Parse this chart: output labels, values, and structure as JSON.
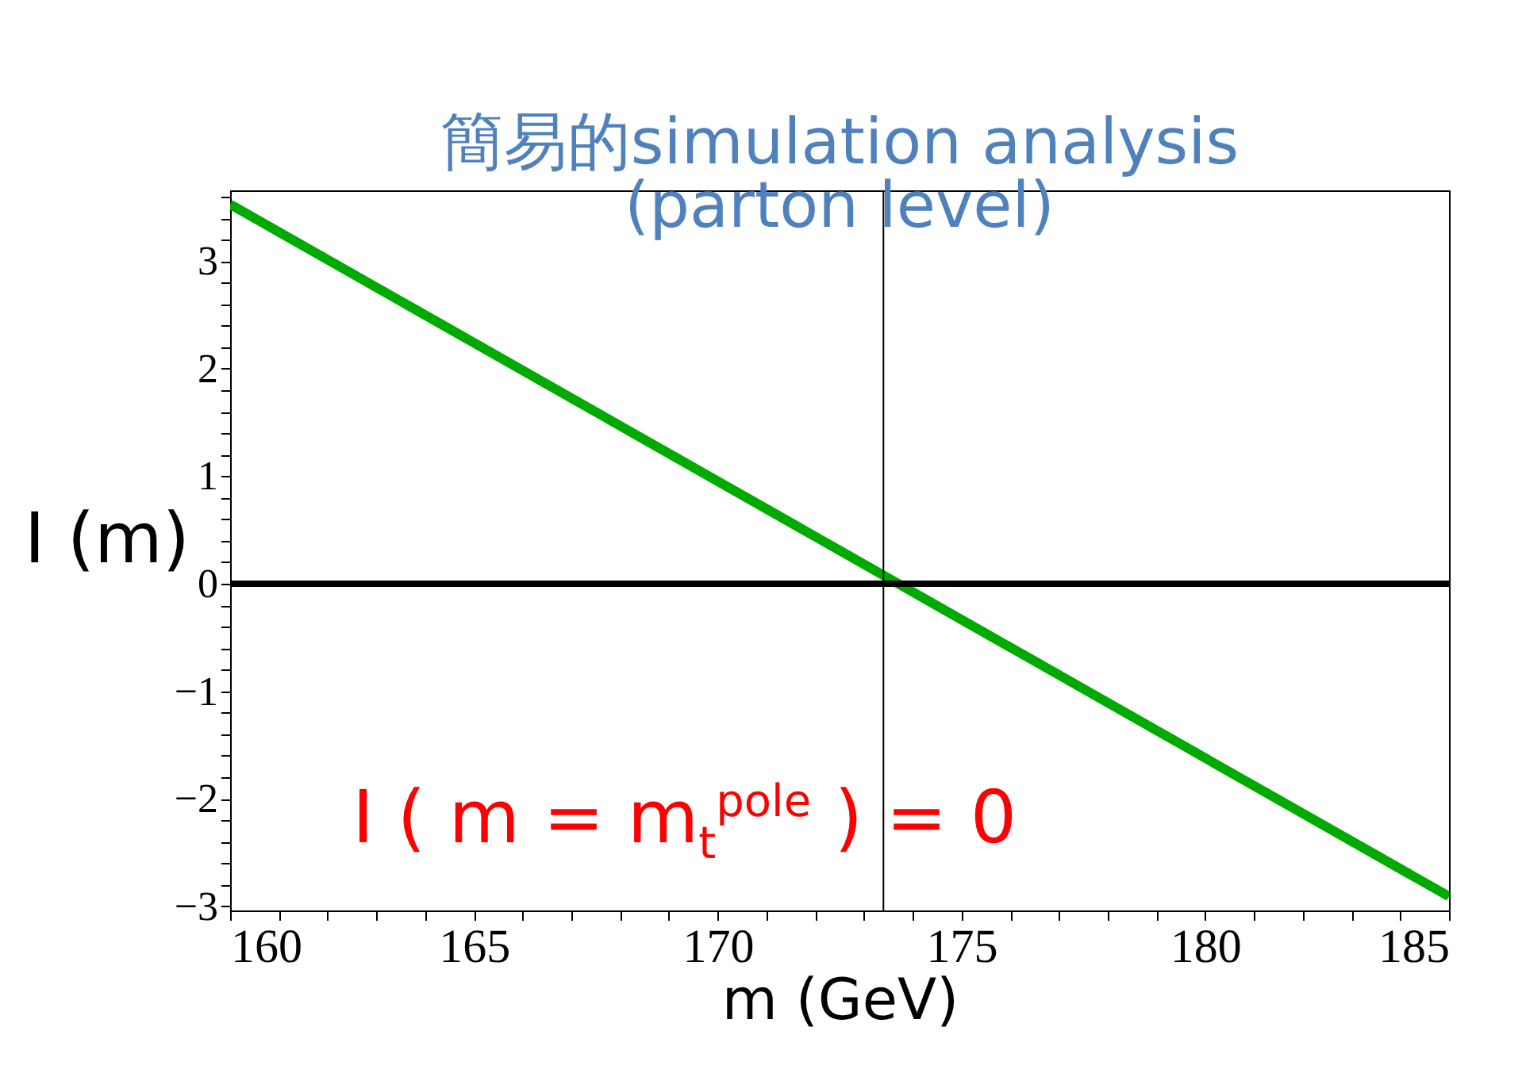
{
  "chart_data": {
    "type": "line",
    "title": "簡易的simulation analysis",
    "subtitle": "(parton level)",
    "xlabel": "m (GeV)",
    "ylabel": "I (m)",
    "x": [
      160,
      185
    ],
    "series": [
      {
        "color": "#00aa00",
        "values": [
          3.53,
          -2.91
        ]
      }
    ],
    "xlim": [
      160,
      185
    ],
    "ylim": [
      -3.04,
      3.66
    ],
    "xticks": [
      160,
      {
        "value": 161,
        "label": null
      },
      {
        "value": 162,
        "label": null
      },
      {
        "value": 163,
        "label": null
      },
      {
        "value": 164,
        "label": null
      },
      165,
      {
        "value": 166,
        "label": null
      },
      {
        "value": 167,
        "label": null
      },
      {
        "value": 168,
        "label": null
      },
      {
        "value": 169,
        "label": null
      },
      170,
      {
        "value": 171,
        "label": null
      },
      {
        "value": 172,
        "label": null
      },
      {
        "value": 173,
        "label": null
      },
      {
        "value": 174,
        "label": null
      },
      175,
      {
        "value": 176,
        "label": null
      },
      {
        "value": 177,
        "label": null
      },
      {
        "value": 178,
        "label": null
      },
      {
        "value": 179,
        "label": null
      },
      180,
      {
        "value": 181,
        "label": null
      },
      {
        "value": 182,
        "label": null
      },
      {
        "value": 183,
        "label": null
      },
      {
        "value": 184,
        "label": null
      },
      185
    ],
    "yticks": [
      -3,
      {
        "value": -2.8,
        "label": null
      },
      {
        "value": -2.6,
        "label": null
      },
      {
        "value": -2.4,
        "label": null
      },
      {
        "value": -2.2,
        "label": null
      },
      -2,
      {
        "value": -1.8,
        "label": null
      },
      {
        "value": -1.6,
        "label": null
      },
      {
        "value": -1.4,
        "label": null
      },
      {
        "value": -1.2,
        "label": null
      },
      -1,
      {
        "value": -0.8,
        "label": null
      },
      {
        "value": -0.6,
        "label": null
      },
      {
        "value": -0.4,
        "label": null
      },
      {
        "value": -0.2,
        "label": null
      },
      0,
      {
        "value": 0.2,
        "label": null
      },
      {
        "value": 0.4,
        "label": null
      },
      {
        "value": 0.6,
        "label": null
      },
      {
        "value": 0.8,
        "label": null
      },
      1,
      {
        "value": 1.2,
        "label": null
      },
      {
        "value": 1.4,
        "label": null
      },
      {
        "value": 1.6,
        "label": null
      },
      {
        "value": 1.8,
        "label": null
      },
      2,
      {
        "value": 2.2,
        "label": null
      },
      {
        "value": 2.4,
        "label": null
      },
      {
        "value": 2.6,
        "label": null
      },
      {
        "value": 2.8,
        "label": null
      },
      3,
      {
        "value": 3.2,
        "label": null
      },
      {
        "value": 3.4,
        "label": null
      },
      {
        "value": 3.6,
        "label": null
      }
    ],
    "ref_lines": [
      {
        "axis": "y",
        "value": 0,
        "color": "#000000"
      },
      {
        "axis": "x",
        "value": 173.4,
        "color": "#000000"
      }
    ],
    "annotations": [
      "I ( m = m$_{t}$$^{pole}$ ) = 0"
    ],
    "grid": false,
    "legend": false,
    "marker": "none",
    "line_style": "solid"
  }
}
